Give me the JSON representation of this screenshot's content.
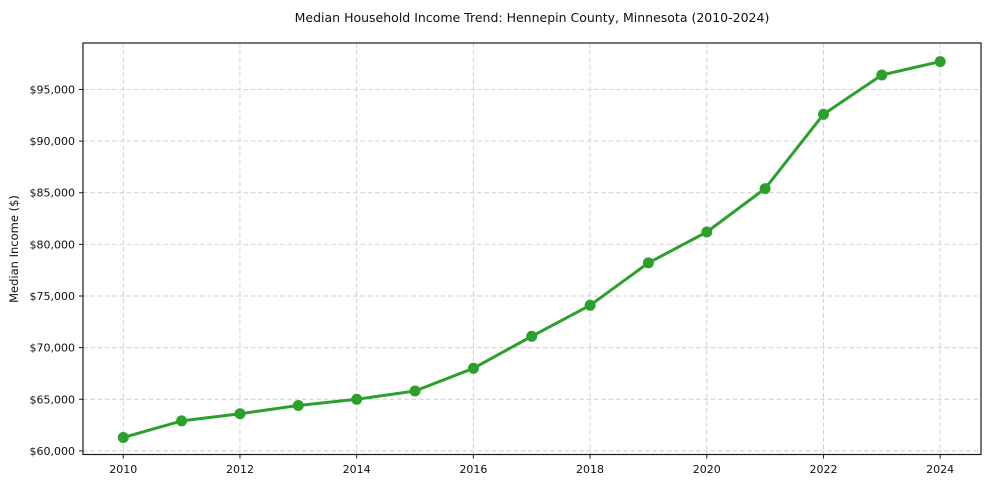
{
  "chart_data": {
    "type": "line",
    "title": "Median Household Income Trend: Hennepin County, Minnesota (2010-2024)",
    "xlabel": "",
    "ylabel": "Median Income ($)",
    "series": [
      {
        "name": "Median household income",
        "x": [
          2010,
          2011,
          2012,
          2013,
          2014,
          2015,
          2016,
          2017,
          2018,
          2019,
          2020,
          2021,
          2022,
          2023,
          2024
        ],
        "values": [
          61300,
          62900,
          63600,
          64400,
          65000,
          65800,
          68000,
          71100,
          74100,
          78200,
          81200,
          85400,
          92600,
          96400,
          97700
        ]
      }
    ],
    "xlim": [
      2009.31,
      2024.7
    ],
    "ylim": [
      59650,
      99500
    ],
    "xticks": [
      2010,
      2012,
      2014,
      2016,
      2018,
      2020,
      2022,
      2024
    ],
    "yticks": [
      60000,
      65000,
      70000,
      75000,
      80000,
      85000,
      90000,
      95000
    ],
    "ytick_prefix": "$",
    "grid": true,
    "grid_style": "dashed",
    "legend": "none",
    "line_color": "#2ca02c",
    "marker": "circle",
    "grid_color": "#cccccc",
    "spine_color": "#1a1a1a"
  }
}
